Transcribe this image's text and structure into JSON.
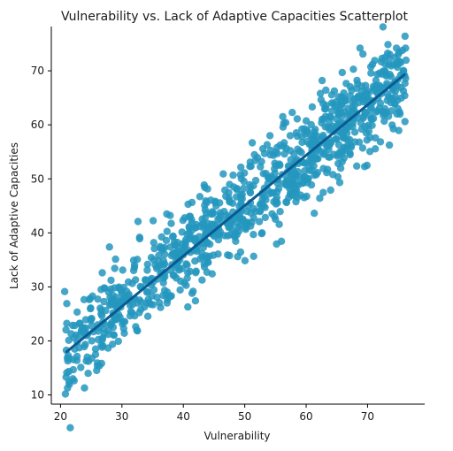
{
  "chart_data": {
    "type": "scatter",
    "title": "Vulnerability vs. Lack of Adaptive Capacities Scatterplot",
    "xlabel": "Vulnerability",
    "ylabel": "Lack of Adaptive Capacities",
    "xlim": [
      18.5,
      79.3
    ],
    "ylim": [
      8.3,
      78.2
    ],
    "xticks": [
      20,
      30,
      40,
      50,
      60,
      70
    ],
    "yticks": [
      10,
      20,
      30,
      40,
      50,
      60,
      70
    ],
    "grid": false,
    "point_color": "#2596be",
    "line_color": "#0a5a91",
    "regression_line": {
      "x": [
        21,
        76
      ],
      "y": [
        18,
        69.3
      ]
    },
    "approx_point_count": 1000,
    "distribution": {
      "x_range": [
        20.6,
        76.3
      ],
      "center_line": {
        "x": [
          21,
          76
        ],
        "y": [
          18,
          69.3
        ]
      },
      "spread_sd": 4.2
    },
    "series": [
      {
        "x": [
          20.9,
          21.4,
          22.0,
          23.3,
          23.9,
          24.5,
          25.1,
          76.1,
          75.4,
          74.7,
          72.3,
          70.8,
          62.6,
          54.1,
          45.0,
          37.3
        ],
        "y": [
          13.3,
          12.4,
          13.0,
          15.1,
          11.3,
          14.0,
          16.8,
          76.4,
          71.5,
          74.2,
          69.4,
          71.2,
          68.2,
          58.0,
          41.4,
          43.5
        ]
      }
    ]
  }
}
